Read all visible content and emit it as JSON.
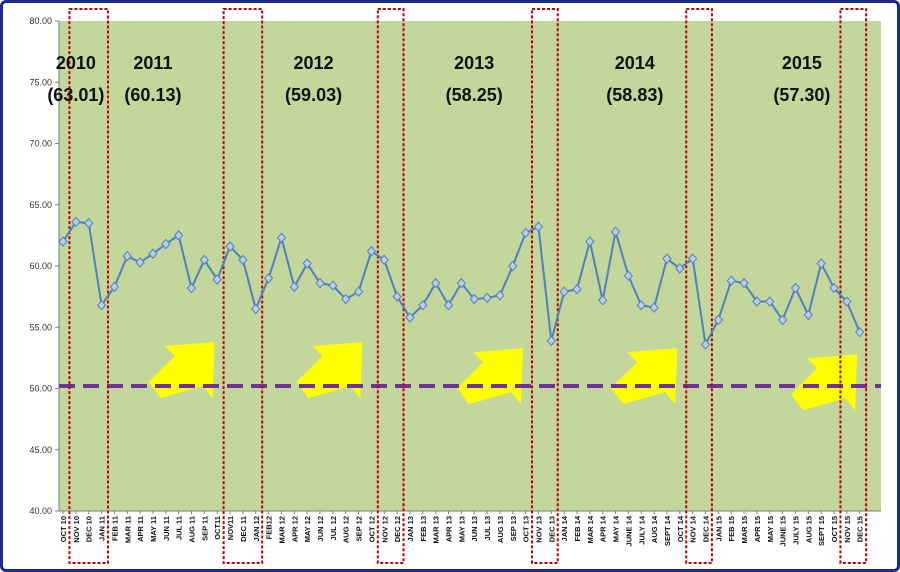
{
  "chart_data": {
    "type": "line",
    "title": "",
    "xlabel": "",
    "ylabel": "",
    "ylim": [
      40,
      80
    ],
    "yticks": [
      "40.00",
      "45.00",
      "50.00",
      "55.00",
      "60.00",
      "65.00",
      "70.00",
      "75.00",
      "80.00"
    ],
    "grid": false,
    "plot_background": "#c3d69b",
    "series_color": "#4f81bd",
    "reference_line": {
      "value": 50.2,
      "color": "#7030a0",
      "style": "dashed"
    },
    "highlight_box_color": "#c00000",
    "arrow_color": "#ffff00",
    "categories": [
      "OCT 10",
      "NOV 10",
      "DEC 10",
      "JAN 11",
      "FEB 11",
      "MAR 11",
      "APR 11",
      "MAY 11",
      "JUN 11",
      "JUL 11",
      "AUG 11",
      "SEP 11",
      "OCT11",
      "NOV11",
      "DEC 11",
      "JAN 12",
      "FEB12",
      "MAR 12",
      "APR 12",
      "MAY 12",
      "JUN 12",
      "JUL 12",
      "AUG 12",
      "SEP 12",
      "OCT 12",
      "NOV 12",
      "DEC 12",
      "JAN 13",
      "FEB 13",
      "MAR 13",
      "APR 13",
      "MAY 13",
      "JUN 13",
      "JUL 13",
      "AUG 13",
      "SEP 13",
      "OCT 13",
      "NOV 13",
      "DEC 13",
      "JAN 14",
      "FEB 14",
      "MAR 14",
      "APR 14",
      "MAY 14",
      "JUNE 14",
      "JULY 14",
      "AUG 14",
      "SEPT 14",
      "OCT 14",
      "NOV 14",
      "DEC 14",
      "JAN 15",
      "FEB 15",
      "MAR 15",
      "APR 15",
      "MAY 15",
      "JUNE 15",
      "JULY 15",
      "AUG 15",
      "SEPT 15",
      "OCT 15",
      "NOV 15",
      "DEC 15"
    ],
    "series": [
      {
        "values": [
          62.0,
          63.6,
          63.5,
          56.8,
          58.3,
          60.8,
          60.3,
          61.0,
          61.8,
          62.5,
          58.2,
          60.5,
          58.9,
          61.6,
          60.5,
          56.5,
          59.0,
          62.3,
          58.3,
          60.2,
          58.6,
          58.4,
          57.3,
          57.9,
          61.2,
          60.5,
          57.5,
          55.8,
          56.8,
          58.6,
          56.8,
          58.6,
          57.3,
          57.4,
          57.6,
          60.0,
          62.7,
          63.2,
          53.9,
          57.9,
          58.1,
          62.0,
          57.2,
          62.8,
          59.2,
          56.8,
          56.6,
          60.6,
          59.8,
          60.6,
          53.6,
          55.6,
          58.8,
          58.6,
          57.1,
          57.1,
          55.6,
          58.2,
          56.0,
          60.2,
          58.2,
          57.1,
          54.6
        ]
      }
    ],
    "year_labels": [
      {
        "year": "2010",
        "avg": "(63.01)",
        "cat": 1
      },
      {
        "year": "2011",
        "avg": "(60.13)",
        "cat": 7
      },
      {
        "year": "2012",
        "avg": "(59.03)",
        "cat": 19.5
      },
      {
        "year": "2013",
        "avg": "(58.25)",
        "cat": 32
      },
      {
        "year": "2014",
        "avg": "(58.83)",
        "cat": 44.5
      },
      {
        "year": "2015",
        "avg": "(57.30)",
        "cat": 57.5
      }
    ],
    "highlight_boxes": [
      [
        0.5,
        3.5
      ],
      [
        12.5,
        15.5
      ],
      [
        24.5,
        26.5
      ],
      [
        36.5,
        38.5
      ],
      [
        48.5,
        50.5
      ],
      [
        60.5,
        62.5
      ]
    ],
    "arrows": [
      [
        9,
        52
      ],
      [
        20.5,
        52
      ],
      [
        33,
        51.5
      ],
      [
        45,
        51.5
      ],
      [
        59,
        51
      ]
    ]
  }
}
